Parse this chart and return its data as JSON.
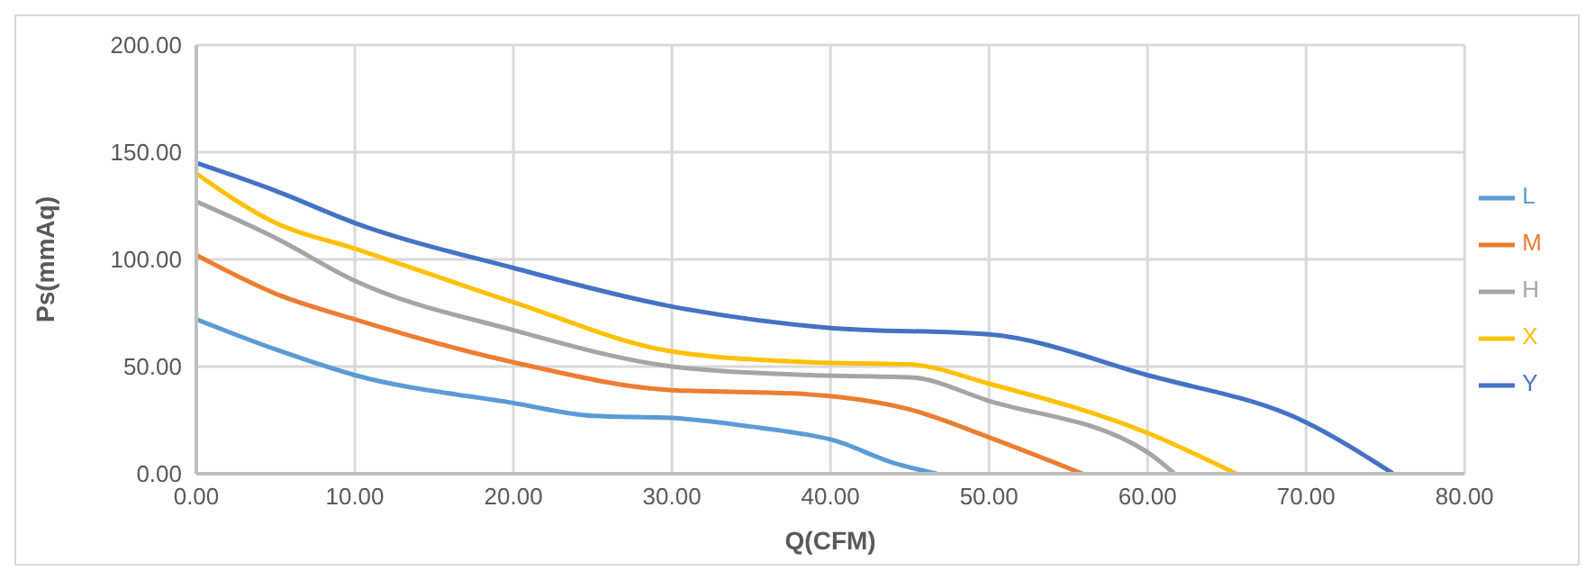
{
  "chart_data": {
    "type": "line",
    "xlabel": "Q(CFM)",
    "ylabel": "Ps(mmAq)",
    "xlim": [
      0,
      80
    ],
    "ylim": [
      0,
      200
    ],
    "xticks": [
      {
        "value": 0,
        "label": "0.00"
      },
      {
        "value": 10,
        "label": "10.00"
      },
      {
        "value": 20,
        "label": "20.00"
      },
      {
        "value": 30,
        "label": "30.00"
      },
      {
        "value": 40,
        "label": "40.00"
      },
      {
        "value": 50,
        "label": "50.00"
      },
      {
        "value": 60,
        "label": "60.00"
      },
      {
        "value": 70,
        "label": "70.00"
      },
      {
        "value": 80,
        "label": "80.00"
      }
    ],
    "yticks": [
      {
        "value": 0,
        "label": "0.00"
      },
      {
        "value": 50,
        "label": "50.00"
      },
      {
        "value": 100,
        "label": "100.00"
      },
      {
        "value": 150,
        "label": "150.00"
      },
      {
        "value": 200,
        "label": "200.00"
      }
    ],
    "grid": true,
    "legend": "right",
    "marker": "none",
    "line_style": "solid",
    "series": [
      {
        "name": "L",
        "color": "#5b9bd5",
        "x": [
          0,
          5,
          10,
          20,
          25,
          30,
          35,
          38.7,
          40,
          44,
          46.7
        ],
        "values": [
          72,
          58,
          46,
          33,
          27,
          26,
          22,
          18,
          16,
          5,
          0
        ]
      },
      {
        "name": "M",
        "color": "#ed7d31",
        "x": [
          0,
          5,
          10,
          20,
          30,
          35,
          38.7,
          45,
          50,
          55.9
        ],
        "values": [
          102,
          84,
          72,
          52,
          39,
          38,
          37,
          30,
          17,
          0
        ]
      },
      {
        "name": "H",
        "color": "#a5a5a5",
        "x": [
          0,
          5,
          10,
          20,
          30,
          38.7,
          45,
          50,
          60,
          61.7
        ],
        "values": [
          127,
          110,
          90,
          67,
          50,
          46,
          45,
          34,
          10,
          0
        ]
      },
      {
        "name": "X",
        "color": "#ffc000",
        "x": [
          0,
          5,
          10,
          20,
          30,
          38.7,
          45,
          50,
          60,
          65.6
        ],
        "values": [
          140,
          117,
          105,
          80,
          57,
          52,
          51,
          42,
          19,
          0
        ]
      },
      {
        "name": "Y",
        "color": "#4472c4",
        "x": [
          0,
          5,
          10,
          20,
          30,
          40,
          50,
          60,
          70,
          75.5
        ],
        "values": [
          145,
          132,
          117,
          96,
          78,
          68,
          65,
          46,
          24,
          0
        ]
      }
    ]
  }
}
